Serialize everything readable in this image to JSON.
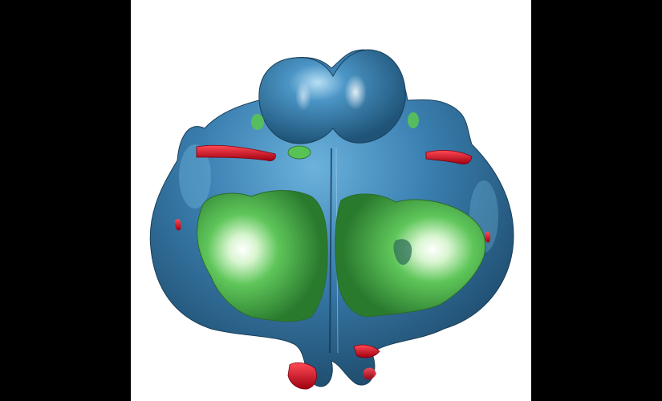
{
  "scene": {
    "subject": "3d-isosurface-render",
    "colors": {
      "background": "#ffffff",
      "letterbox": "#000000",
      "surface_blue": "#3a7fb0",
      "surface_green": "#4fbf4a",
      "surface_red": "#d01020"
    }
  }
}
